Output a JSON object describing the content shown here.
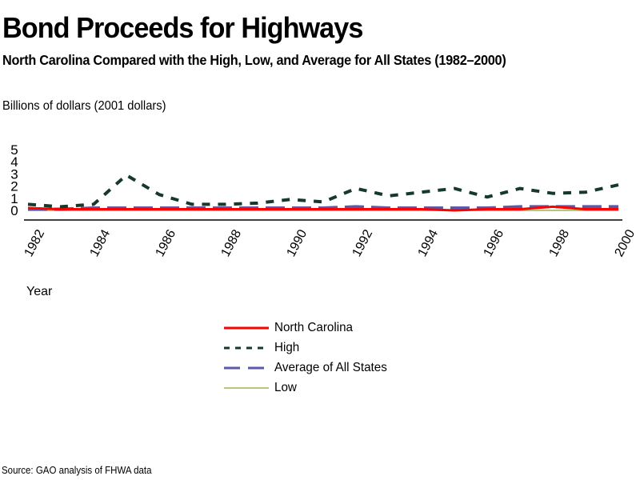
{
  "chart_data": {
    "type": "line",
    "title": "Bond Proceeds for Highways",
    "subtitle": "North Carolina Compared with the High, Low, and Average for All States (1982–2000)",
    "ylabel": "Billions of dollars (2001 dollars)",
    "xlabel": "Year",
    "source": "Source: GAO analysis of FHWA data",
    "x": [
      1982,
      1983,
      1984,
      1985,
      1986,
      1987,
      1988,
      1989,
      1990,
      1991,
      1992,
      1993,
      1994,
      1995,
      1996,
      1997,
      1998,
      1999,
      2000
    ],
    "x_tick_labels": [
      "1982",
      "1984",
      "1986",
      "1988",
      "1990",
      "1992",
      "1994",
      "1996",
      "1998",
      "2000"
    ],
    "y_tick_labels": [
      "0",
      "1",
      "2",
      "3",
      "4",
      "5"
    ],
    "ylim": [
      0,
      5
    ],
    "xlim": [
      1982,
      2000
    ],
    "grid": false,
    "legend_position": "bottom",
    "series": [
      {
        "name": "North Carolina",
        "color": "#ff0000",
        "style": "solid",
        "values": [
          0.2,
          0.1,
          0.1,
          0.1,
          0.1,
          0.1,
          0.1,
          0.1,
          0.1,
          0.1,
          0.1,
          0.1,
          0.1,
          0.0,
          0.1,
          0.1,
          0.3,
          0.1,
          0.1
        ]
      },
      {
        "name": "High",
        "color": "#163a2a",
        "style": "dashed",
        "values": [
          0.5,
          0.3,
          0.5,
          2.9,
          1.3,
          0.5,
          0.5,
          0.6,
          0.9,
          0.7,
          1.8,
          1.2,
          1.5,
          1.8,
          1.1,
          1.8,
          1.4,
          1.5,
          2.1
        ]
      },
      {
        "name": "Average of All States",
        "color": "#5a5aa6",
        "style": "longdash",
        "values": [
          0.1,
          0.1,
          0.2,
          0.2,
          0.2,
          0.2,
          0.2,
          0.2,
          0.2,
          0.2,
          0.3,
          0.2,
          0.2,
          0.2,
          0.2,
          0.3,
          0.3,
          0.3,
          0.3
        ]
      },
      {
        "name": "Low",
        "color": "#9cb54a",
        "style": "solid-thin",
        "values": [
          0,
          0,
          0,
          0,
          0,
          0,
          0,
          0,
          0,
          0,
          0,
          0,
          0,
          0,
          0,
          0,
          0,
          0,
          0
        ]
      }
    ]
  }
}
